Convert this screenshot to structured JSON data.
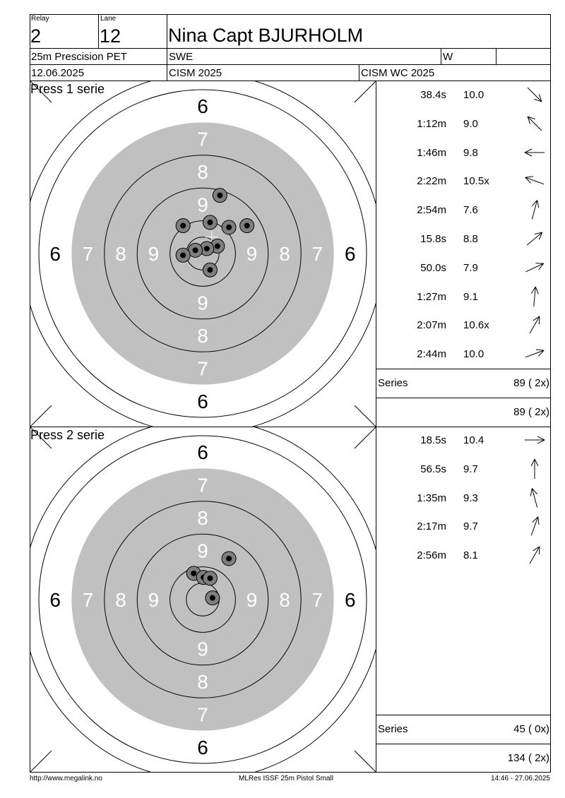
{
  "header": {
    "relay_label": "Relay",
    "relay_value": "2",
    "lane_label": "Lane",
    "lane_value": "12",
    "shooter_name": "Nina Capt BJURHOLM",
    "event": "25m Prescision PET",
    "nation": "SWE",
    "gender": "W",
    "date": "12.06.2025",
    "competition": "CISM 2025",
    "championship": "CISM WC 2025"
  },
  "series": [
    {
      "title": "Press 1 serie",
      "shots": [
        {
          "time": "38.4s",
          "score": "10.0",
          "dir": 135
        },
        {
          "time": "1:12m",
          "score": "9.0",
          "dir": -45
        },
        {
          "time": "1:46m",
          "score": "9.8",
          "dir": -90
        },
        {
          "time": "2:22m",
          "score": "10.5x",
          "dir": -70
        },
        {
          "time": "2:54m",
          "score": "7.6",
          "dir": 15
        },
        {
          "time": "15.8s",
          "score": "8.8",
          "dir": 50
        },
        {
          "time": "50.0s",
          "score": "7.9",
          "dir": 65
        },
        {
          "time": "1:27m",
          "score": "9.1",
          "dir": 5
        },
        {
          "time": "2:07m",
          "score": "10.6x",
          "dir": 30
        },
        {
          "time": "2:44m",
          "score": "10.0",
          "dir": 70
        }
      ],
      "series_label": "Series",
      "series_total": "89 ( 2x)",
      "running_total": "89 ( 2x)",
      "impacts": [
        {
          "x": 1.05,
          "y": 3.55
        },
        {
          "x": -1.2,
          "y": 1.7
        },
        {
          "x": 0.45,
          "y": 1.9
        },
        {
          "x": 1.6,
          "y": 1.6
        },
        {
          "x": 2.7,
          "y": 1.7
        },
        {
          "x": 0.9,
          "y": 0.45
        },
        {
          "x": 0.25,
          "y": 0.3
        },
        {
          "x": -0.45,
          "y": 0.2
        },
        {
          "x": -1.2,
          "y": -0.1
        },
        {
          "x": 0.45,
          "y": -1.0
        }
      ],
      "center_mark": {
        "x": 0.55,
        "y": 1.0
      }
    },
    {
      "title": "Press 2 serie",
      "shots": [
        {
          "time": "18.5s",
          "score": "10.4",
          "dir": 90
        },
        {
          "time": "56.5s",
          "score": "9.7",
          "dir": 0
        },
        {
          "time": "1:35m",
          "score": "9.3",
          "dir": -15
        },
        {
          "time": "2:17m",
          "score": "9.7",
          "dir": 20
        },
        {
          "time": "2:56m",
          "score": "8.1",
          "dir": 30
        }
      ],
      "series_label": "Series",
      "series_total": "45 ( 0x)",
      "running_total": "134 ( 2x)",
      "impacts": [
        {
          "x": 1.6,
          "y": 2.5
        },
        {
          "x": -0.55,
          "y": 1.6
        },
        {
          "x": 0.05,
          "y": 1.35
        },
        {
          "x": 0.45,
          "y": 1.3
        },
        {
          "x": 0.6,
          "y": 0.1
        }
      ],
      "center_mark": {
        "x": 0.45,
        "y": 1.3
      }
    }
  ],
  "footer": {
    "url": "http://www.megalink.no",
    "software": "MLRes ISSF 25m Pistol Small",
    "timestamp": "14:46 - 27.06.2025"
  },
  "target": {
    "ring_numbers": [
      "6",
      "7",
      "8",
      "9"
    ],
    "grey": "#c0c0c0",
    "white_text": "#ffffff"
  }
}
